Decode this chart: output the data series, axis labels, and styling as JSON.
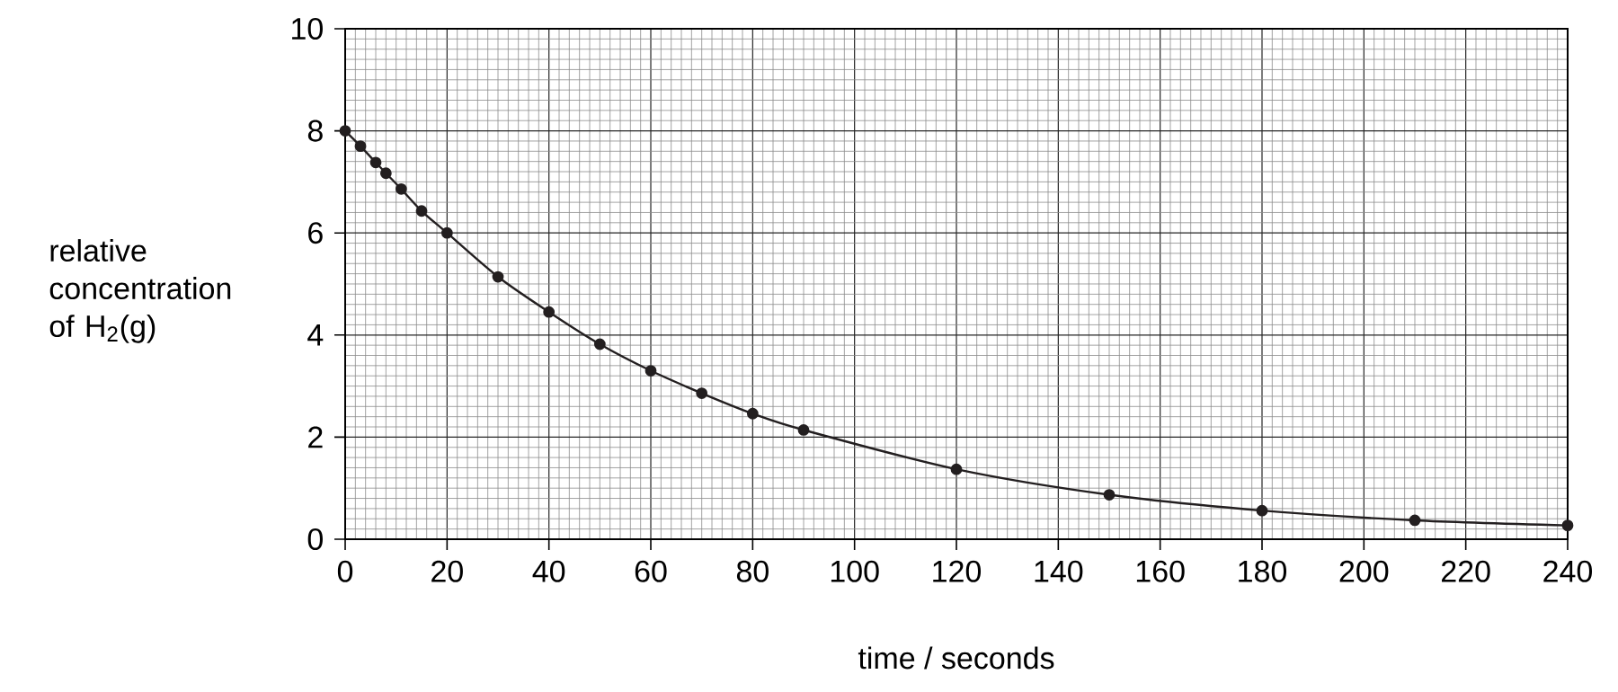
{
  "chart_data": {
    "type": "line",
    "xlabel": "time / seconds",
    "ylabel": "relative concentration of H$_{2}$(g)",
    "x": [
      0,
      3,
      6,
      8,
      11,
      15,
      20,
      30,
      40,
      50,
      60,
      70,
      80,
      90,
      120,
      150,
      180,
      210,
      240
    ],
    "series": [
      {
        "color": "#231f20",
        "values": [
          8.0,
          7.7,
          7.38,
          7.17,
          6.86,
          6.43,
          6.0,
          5.14,
          4.45,
          3.82,
          3.3,
          2.86,
          2.46,
          2.14,
          1.37,
          0.87,
          0.56,
          0.37,
          0.27
        ]
      }
    ],
    "xlim": [
      0,
      240
    ],
    "ylim": [
      0,
      10
    ],
    "xticks": [
      0,
      20,
      40,
      60,
      80,
      100,
      120,
      140,
      160,
      180,
      200,
      220,
      240
    ],
    "yticks": [
      0,
      2,
      4,
      6,
      8,
      10
    ],
    "grid": true,
    "marker": "circle",
    "line_style": "solid"
  }
}
